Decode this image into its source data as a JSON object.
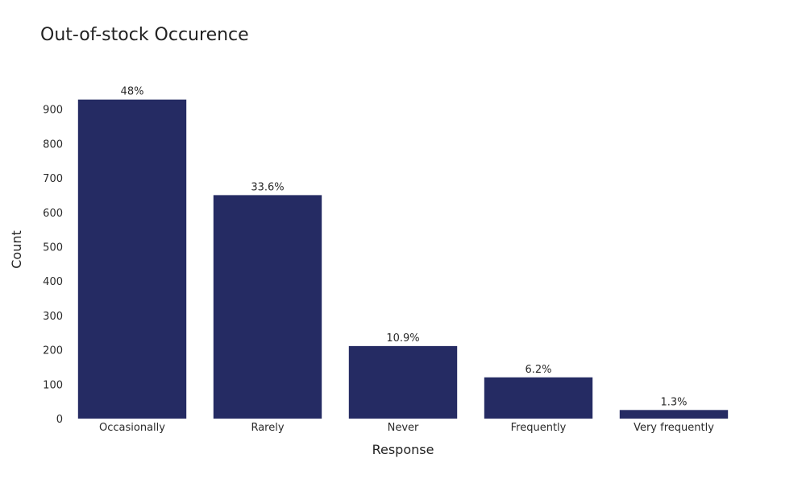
{
  "chart_data": {
    "type": "bar",
    "title": "Out-of-stock Occurence",
    "xlabel": "Response",
    "ylabel": "Count",
    "categories": [
      "Occasionally",
      "Rarely",
      "Never",
      "Frequently",
      "Very frequently"
    ],
    "values": [
      928,
      650,
      211,
      120,
      25
    ],
    "data_labels": [
      "48%",
      "33.6%",
      "10.9%",
      "6.2%",
      "1.3%"
    ],
    "ylim": [
      0,
      960
    ],
    "yticks": [
      0,
      100,
      200,
      300,
      400,
      500,
      600,
      700,
      800,
      900
    ],
    "grid": false,
    "legend": "none",
    "bar_color": "#252b63"
  }
}
